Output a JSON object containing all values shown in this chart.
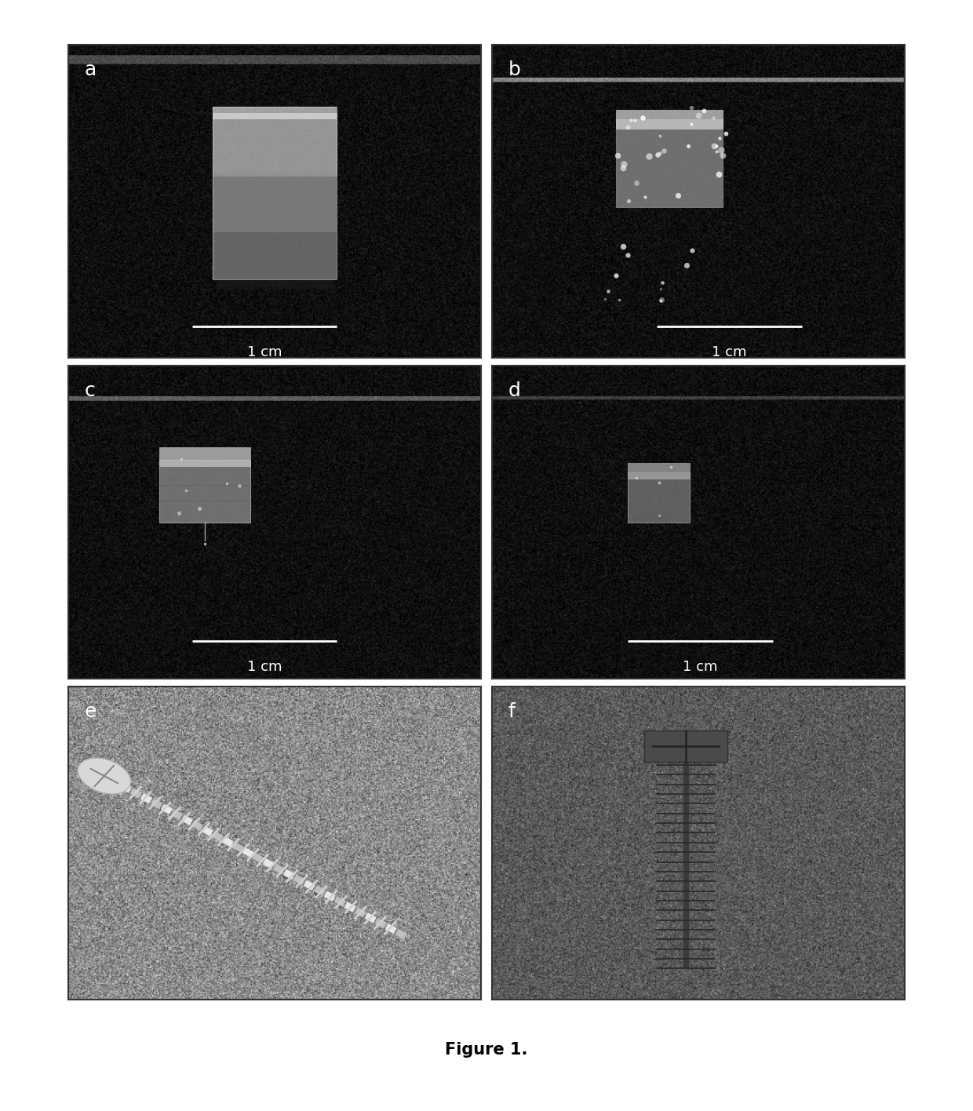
{
  "figure_title": "Figure 1.",
  "title_fontsize": 15,
  "title_fontweight": "bold",
  "background_color": "#ffffff",
  "panel_labels": [
    "a",
    "b",
    "c",
    "d",
    "e",
    "f"
  ],
  "label_fontsize": 18,
  "label_color": "white",
  "scale_bar_text": "1 cm",
  "scale_bar_color": "white",
  "scale_bar_fontsize": 13,
  "fig_width": 12.4,
  "fig_height": 14.16,
  "n_rows": 3,
  "n_cols": 2,
  "panel_border_color": "#333333",
  "abcd_bg_mean": 15,
  "abcd_bg_std": 10,
  "e_bg_mean": 140,
  "e_bg_std": 30,
  "f_bg_mean": 90,
  "f_bg_std": 20
}
